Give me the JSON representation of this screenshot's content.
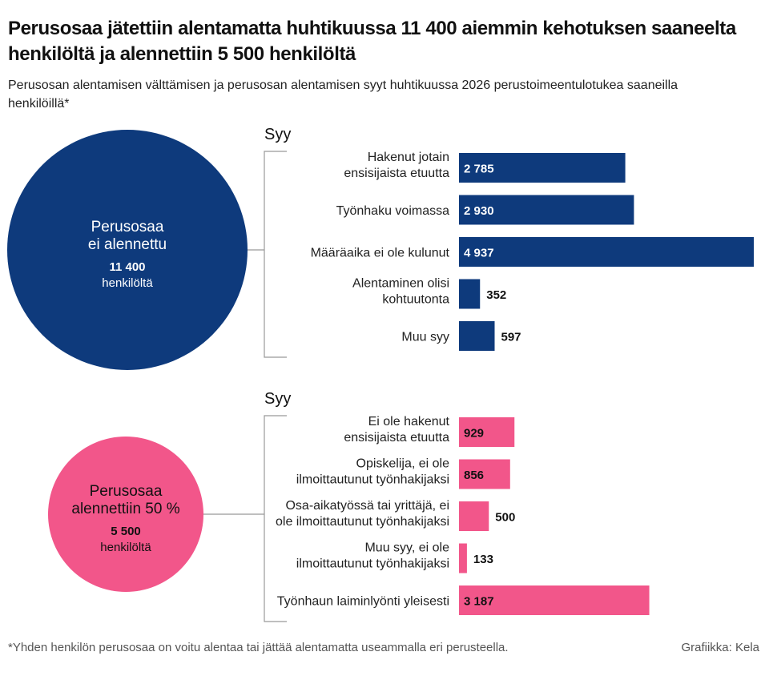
{
  "title": "Perusosaa jätettiin alentamatta huhtikuussa 11 400 aiemmin kehotuksen saaneelta henkilöltä ja alennettiin 5 500 henkilöltä",
  "subtitle": "Perusosan alentamisen välttämisen ja perusosan alentamisen syyt huhtikuussa 2026 perustoimeentulotukea saaneilla henkilöillä*",
  "footnote": "*Yhden henkilön perusosaa on voitu alentaa tai jättää alentamatta useammalla eri perusteella.",
  "credit": "Grafiikka: Kela",
  "colors": {
    "navy": "#0e3a7c",
    "pink": "#f2568a",
    "bracket": "#999999"
  },
  "chart_data": [
    {
      "type": "bar",
      "orientation": "horizontal",
      "group_label": "Syy",
      "circle": {
        "line1": "Perusosaa",
        "line2": "ei alennettu",
        "count": "11 400",
        "unit": "henkilöltä"
      },
      "color": "#0e3a7c",
      "categories": [
        [
          "Hakenut jotain",
          "ensisijaista etuutta"
        ],
        [
          "Työnhaku voimassa"
        ],
        [
          "Määräaika ei ole kulunut"
        ],
        [
          "Alentaminen olisi",
          "kohtuutonta"
        ],
        [
          "Muu syy"
        ]
      ],
      "values": [
        2785,
        2930,
        4937,
        352,
        597
      ],
      "value_labels": [
        "2 785",
        "2 930",
        "4 937",
        "352",
        "597"
      ]
    },
    {
      "type": "bar",
      "orientation": "horizontal",
      "group_label": "Syy",
      "circle": {
        "line1": "Perusosaa",
        "line2": "alennettiin 50 %",
        "count": "5 500",
        "unit": "henkilöltä"
      },
      "color": "#f2568a",
      "categories": [
        [
          "Ei ole hakenut",
          "ensisijaista etuutta"
        ],
        [
          "Opiskelija, ei ole",
          "ilmoittautunut työnhakijaksi"
        ],
        [
          "Osa-aikatyössä tai yrittäjä, ei",
          "ole ilmoittautunut työnhakijaksi"
        ],
        [
          "Muu syy, ei ole",
          "ilmoittautunut työnhakijaksi"
        ],
        [
          "Työnhaun laiminlyönti yleisesti"
        ]
      ],
      "values": [
        929,
        856,
        500,
        133,
        3187
      ],
      "value_labels": [
        "929",
        "856",
        "500",
        "133",
        "3 187"
      ]
    }
  ]
}
